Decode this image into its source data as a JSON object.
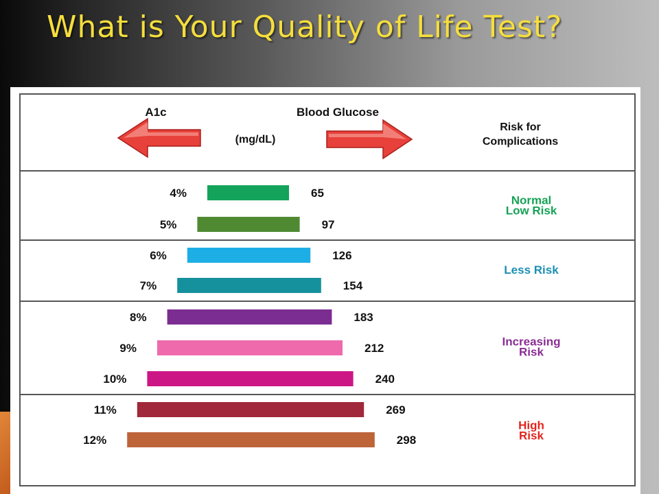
{
  "slide": {
    "title": "What is Your Quality of Life Test?"
  },
  "header": {
    "a1c_label": "A1c",
    "glucose_label": "Blood Glucose",
    "glucose_unit": "(mg/dL)",
    "risk_label_line1": "Risk for",
    "risk_label_line2": "Complications",
    "arrow_color": "#e8403a"
  },
  "chart_data": {
    "type": "table",
    "rows": [
      {
        "a1c": "4%",
        "glucose": "65",
        "color": "#13a35a",
        "group": 0
      },
      {
        "a1c": "5%",
        "glucose": "97",
        "color": "#4f8a33",
        "group": 0
      },
      {
        "a1c": "6%",
        "glucose": "126",
        "color": "#1eaee6",
        "group": 1
      },
      {
        "a1c": "7%",
        "glucose": "154",
        "color": "#14919c",
        "group": 1
      },
      {
        "a1c": "8%",
        "glucose": "183",
        "color": "#7c2d91",
        "group": 2
      },
      {
        "a1c": "9%",
        "glucose": "212",
        "color": "#ef6aac",
        "group": 2
      },
      {
        "a1c": "10%",
        "glucose": "240",
        "color": "#cc1686",
        "group": 2
      },
      {
        "a1c": "11%",
        "glucose": "269",
        "color": "#a0283a",
        "group": 3
      },
      {
        "a1c": "12%",
        "glucose": "298",
        "color": "#bd6439",
        "group": 3
      }
    ],
    "risk_groups": [
      {
        "lines": [
          "Normal",
          "Low Risk"
        ],
        "color": "#16a255"
      },
      {
        "lines": [
          "Less Risk"
        ],
        "color": "#1b8fb3"
      },
      {
        "lines": [
          "Increasing",
          "Risk"
        ],
        "color": "#8a2d94"
      },
      {
        "lines": [
          "High",
          "Risk"
        ],
        "color": "#e2241c"
      }
    ]
  }
}
